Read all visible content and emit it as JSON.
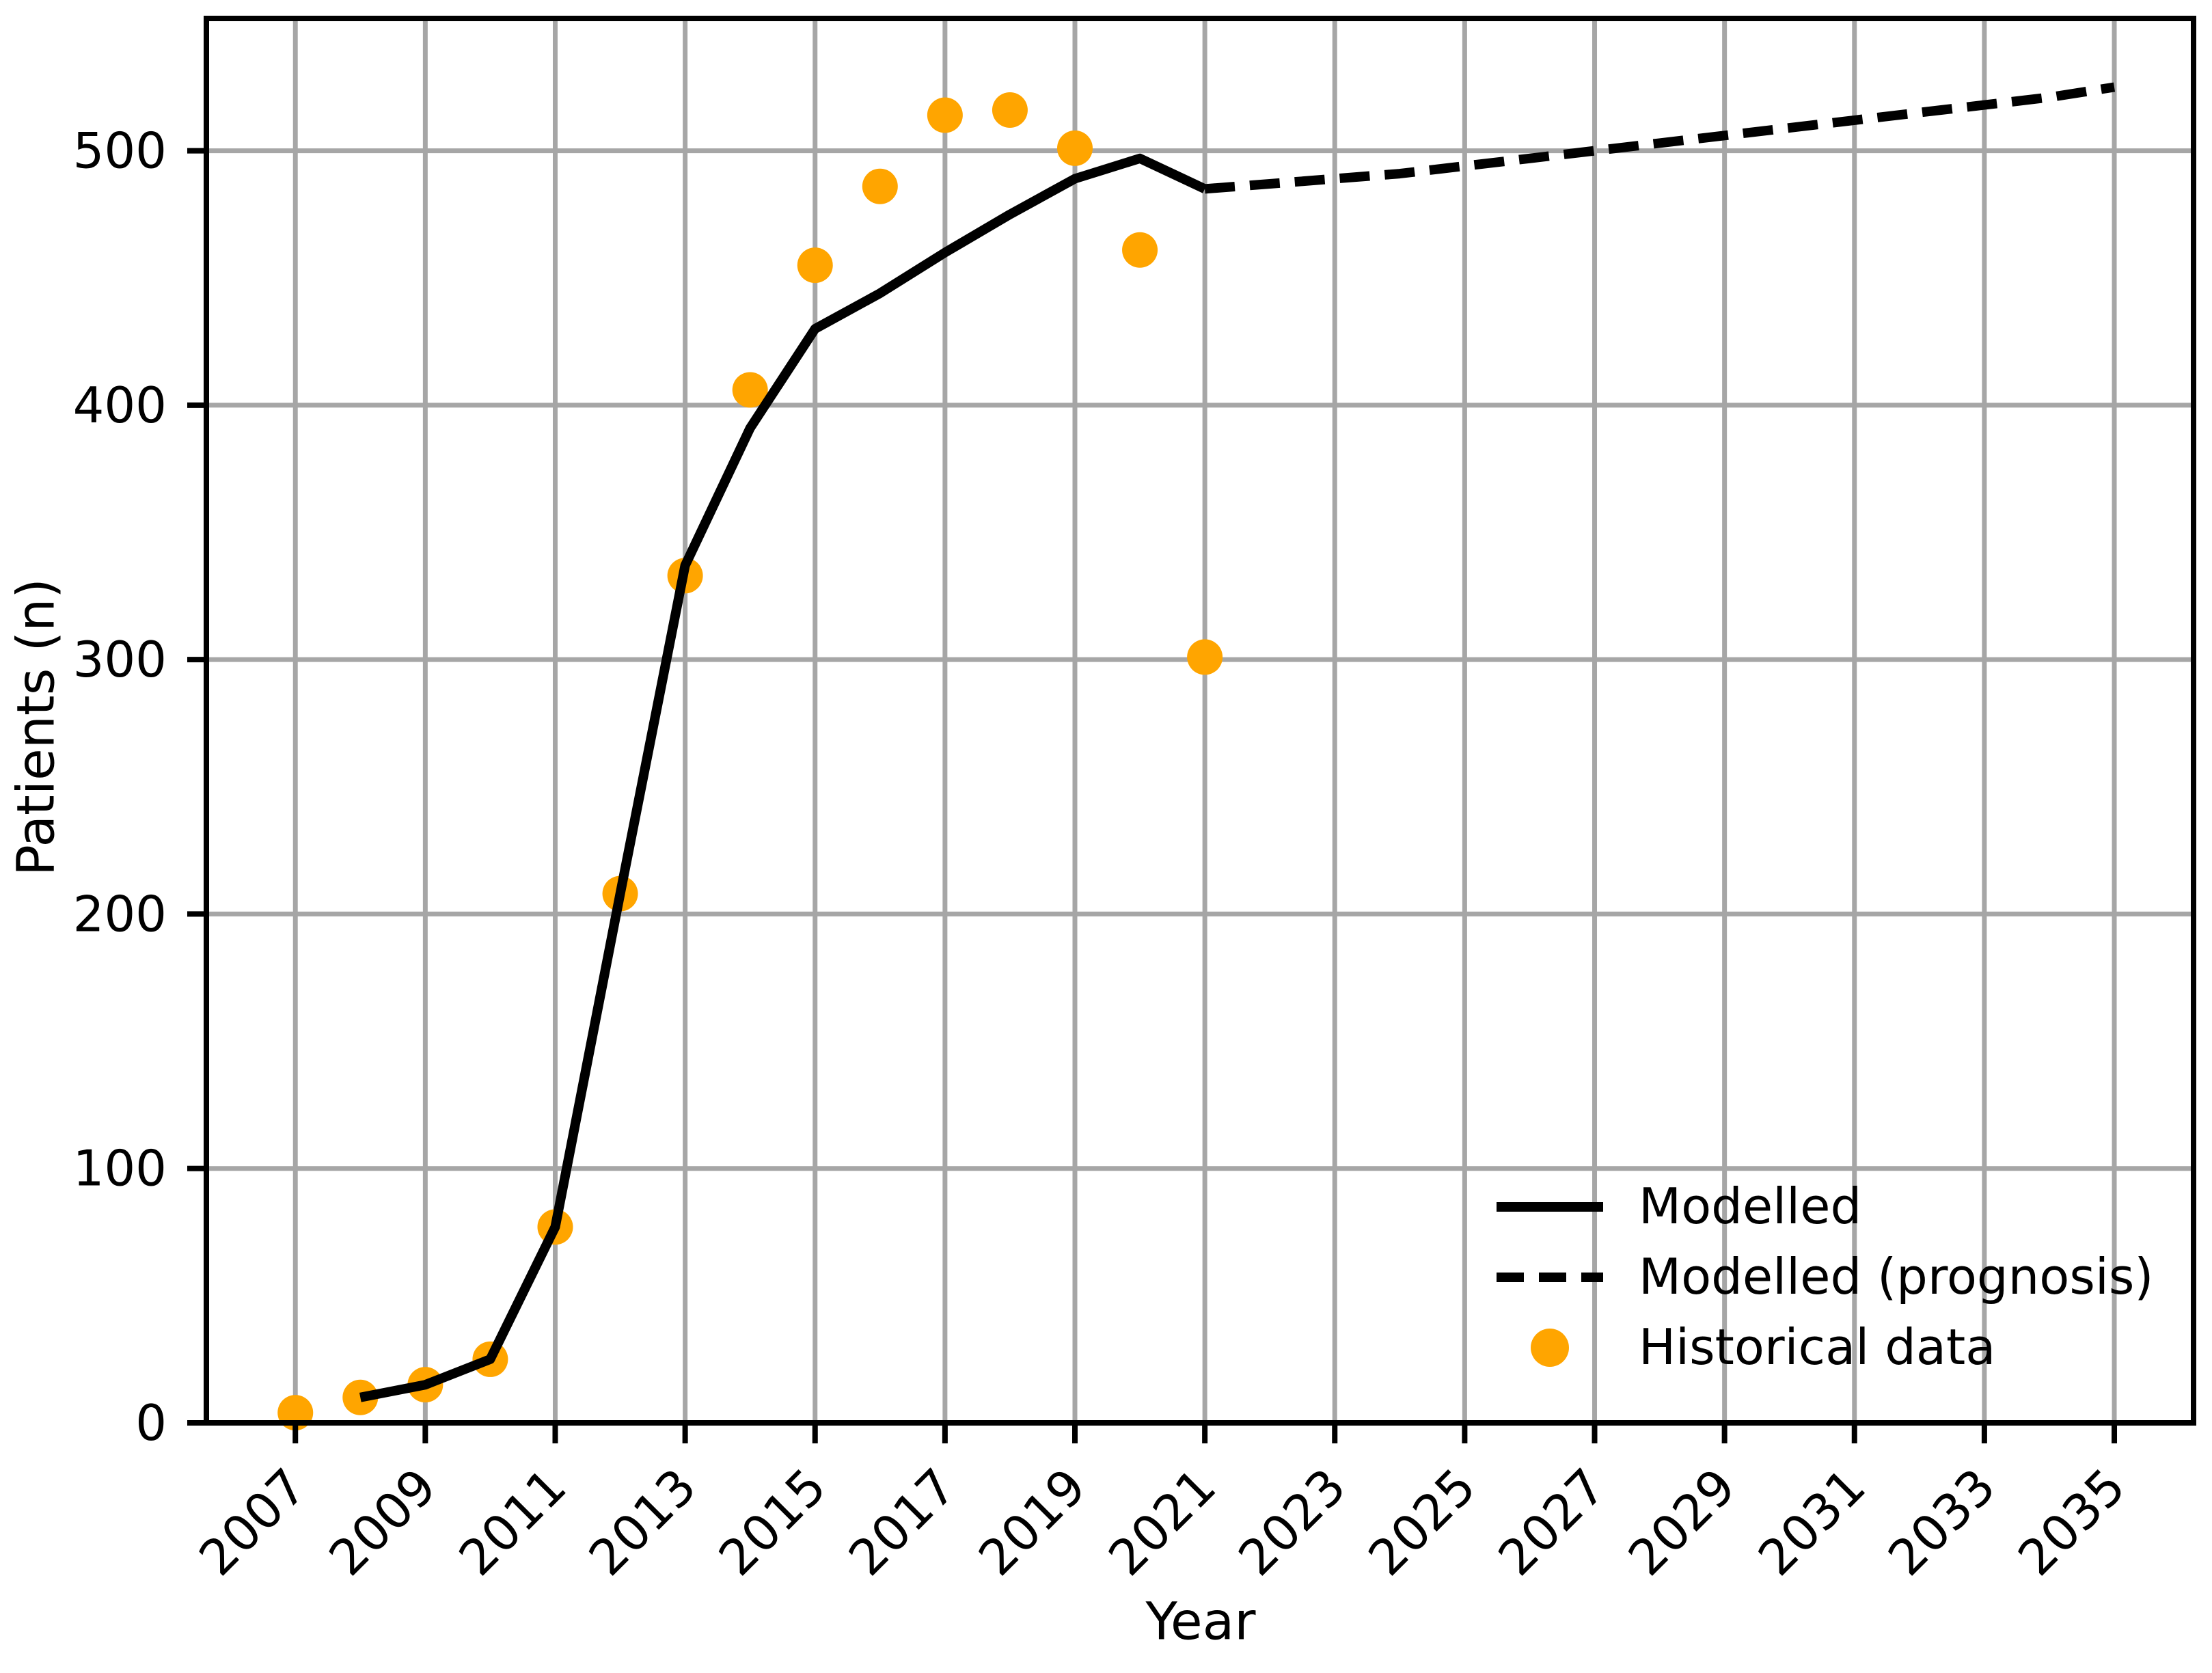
{
  "figure": {
    "background": "#ffffff"
  },
  "chart_data": {
    "type": "line",
    "title": "",
    "xlabel": "Year",
    "ylabel": "Patients (n)",
    "xlim": [
      2005.63,
      2036.22
    ],
    "ylim": [
      0,
      552
    ],
    "x_ticks": [
      2007,
      2009,
      2011,
      2013,
      2015,
      2017,
      2019,
      2021,
      2023,
      2025,
      2027,
      2029,
      2031,
      2033,
      2035
    ],
    "y_ticks": [
      0,
      100,
      200,
      300,
      400,
      500
    ],
    "grid": true,
    "grid_color": "#a6a6a6",
    "axis_color": "#000000",
    "background_color": "#ffffff",
    "series": [
      {
        "name": "Modelled",
        "type": "line",
        "style": "solid",
        "color": "#000000",
        "x": [
          2008,
          2009,
          2010,
          2011,
          2012,
          2013,
          2014,
          2015,
          2016,
          2017,
          2018,
          2019,
          2020,
          2021
        ],
        "y": [
          10,
          15,
          25,
          77,
          208,
          337,
          391,
          430,
          444,
          460,
          475,
          489,
          497,
          485
        ]
      },
      {
        "name": "Modelled (prognosis)",
        "type": "line",
        "style": "dashed",
        "color": "#000000",
        "x": [
          2021,
          2022,
          2023,
          2024,
          2025,
          2026,
          2027,
          2028,
          2029,
          2030,
          2031,
          2032,
          2033,
          2034,
          2035
        ],
        "y": [
          485,
          487,
          489,
          491,
          494,
          497,
          500,
          503,
          506,
          509,
          512,
          515,
          518,
          521,
          525
        ]
      },
      {
        "name": "Historical data",
        "type": "scatter",
        "color": "#ffa500",
        "x": [
          2007,
          2008,
          2009,
          2010,
          2011,
          2012,
          2013,
          2014,
          2015,
          2016,
          2017,
          2018,
          2019,
          2020,
          2021
        ],
        "y": [
          4,
          10,
          15,
          25,
          77,
          208,
          333,
          406,
          455,
          486,
          514,
          516,
          501,
          461,
          301
        ]
      }
    ],
    "legend": {
      "position": "lower right",
      "frame": false,
      "entries": [
        {
          "label": "Modelled",
          "glyph": "solid-line",
          "color": "#000000"
        },
        {
          "label": "Modelled (prognosis)",
          "glyph": "dashed-line",
          "color": "#000000"
        },
        {
          "label": "Historical data",
          "glyph": "dot",
          "color": "#ffa500"
        }
      ]
    }
  }
}
